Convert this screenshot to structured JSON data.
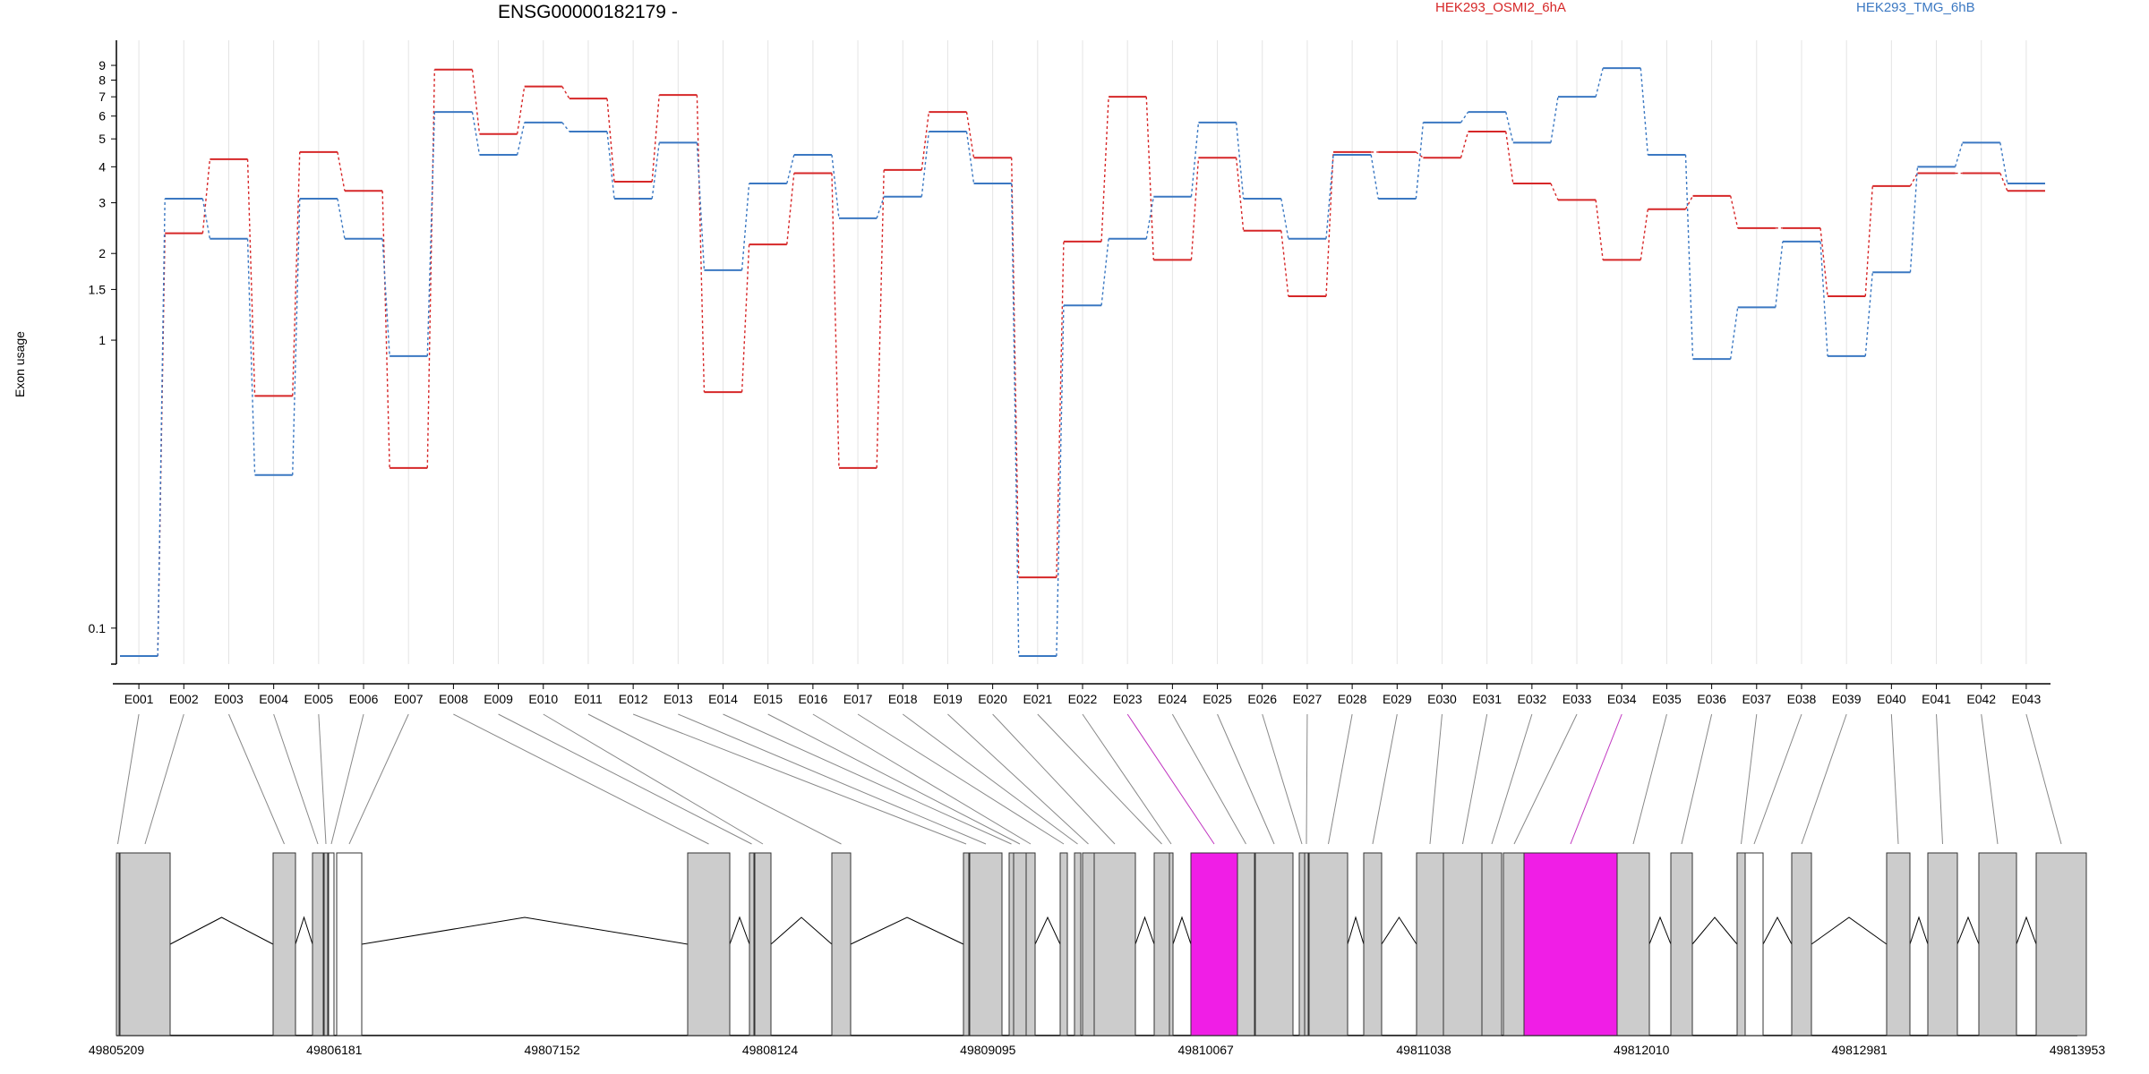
{
  "chart_data": {
    "type": "line",
    "title": "ENSG00000182179 -",
    "ylabel": "Exon usage",
    "yscale": "log",
    "ylim": [
      0.075,
      11
    ],
    "yticks": [
      {
        "v": 0.1,
        "label": "0.1"
      },
      {
        "v": 1,
        "label": "1"
      },
      {
        "v": 1.5,
        "label": "1.5"
      },
      {
        "v": 2,
        "label": "2"
      },
      {
        "v": 3,
        "label": "3"
      },
      {
        "v": 4,
        "label": "4"
      },
      {
        "v": 5,
        "label": "5"
      },
      {
        "v": 6,
        "label": "6"
      },
      {
        "v": 7,
        "label": "7"
      },
      {
        "v": 8,
        "label": "8"
      },
      {
        "v": 9,
        "label": "9"
      }
    ],
    "categories": [
      "E001",
      "E002",
      "E003",
      "E004",
      "E005",
      "E006",
      "E007",
      "E008",
      "E009",
      "E010",
      "E011",
      "E012",
      "E013",
      "E014",
      "E015",
      "E016",
      "E017",
      "E018",
      "E019",
      "E020",
      "E021",
      "E022",
      "E023",
      "E024",
      "E025",
      "E026",
      "E027",
      "E028",
      "E029",
      "E030",
      "E031",
      "E032",
      "E033",
      "E034",
      "E035",
      "E036",
      "E037",
      "E038",
      "E039",
      "E040",
      "E041",
      "E042",
      "E043"
    ],
    "highlighted_exons": [
      "E023",
      "E034"
    ],
    "series": [
      {
        "name": "HEK293_OSMI2_6hA",
        "color": "#d62728",
        "values": [
          0.08,
          2.35,
          4.25,
          0.64,
          4.5,
          3.3,
          0.36,
          8.7,
          5.2,
          7.6,
          6.9,
          3.55,
          7.1,
          0.66,
          2.15,
          3.8,
          0.36,
          3.9,
          6.2,
          4.3,
          0.15,
          2.2,
          7.0,
          1.9,
          4.3,
          2.4,
          1.42,
          4.5,
          4.5,
          4.3,
          5.3,
          3.5,
          3.07,
          1.9,
          2.85,
          3.17,
          2.45,
          2.45,
          1.42,
          3.43,
          3.8,
          3.8,
          3.3
        ]
      },
      {
        "name": "HEK293_TMG_6hB",
        "color": "#3b78c2",
        "values": [
          0.08,
          3.1,
          2.25,
          0.34,
          3.1,
          2.25,
          0.88,
          6.2,
          4.4,
          5.7,
          5.3,
          3.1,
          4.85,
          1.75,
          3.5,
          4.4,
          2.65,
          3.15,
          5.3,
          3.5,
          0.08,
          1.32,
          2.25,
          3.15,
          5.7,
          3.1,
          2.25,
          4.4,
          3.1,
          5.7,
          6.2,
          4.85,
          7.0,
          8.8,
          4.4,
          0.86,
          1.3,
          2.2,
          0.88,
          1.72,
          4.0,
          4.85,
          3.5
        ]
      }
    ],
    "gene_model": {
      "coordinate_labels": [
        "49805209",
        "49806181",
        "49807152",
        "49808124",
        "49809095",
        "49810067",
        "49811038",
        "49812010",
        "49812981",
        "49813953"
      ],
      "exons": [
        {
          "id": "E001",
          "status": "tested"
        },
        {
          "id": "E002",
          "status": "tested"
        },
        {
          "id": "E003",
          "status": "tested"
        },
        {
          "id": "E004",
          "status": "tested"
        },
        {
          "id": "E005",
          "status": "tested"
        },
        {
          "id": "E006",
          "status": "untested"
        },
        {
          "id": "E007",
          "status": "untested"
        },
        {
          "id": "E008",
          "status": "tested"
        },
        {
          "id": "E009",
          "status": "tested"
        },
        {
          "id": "E010",
          "status": "tested"
        },
        {
          "id": "E011",
          "status": "tested"
        },
        {
          "id": "E012",
          "status": "tested"
        },
        {
          "id": "E013",
          "status": "tested"
        },
        {
          "id": "E014",
          "status": "tested"
        },
        {
          "id": "E015",
          "status": "tested"
        },
        {
          "id": "E016",
          "status": "tested"
        },
        {
          "id": "E017",
          "status": "tested"
        },
        {
          "id": "E018",
          "status": "tested"
        },
        {
          "id": "E019",
          "status": "tested"
        },
        {
          "id": "E020",
          "status": "tested"
        },
        {
          "id": "E021",
          "status": "tested"
        },
        {
          "id": "E022",
          "status": "tested"
        },
        {
          "id": "E023",
          "status": "significant"
        },
        {
          "id": "E024",
          "status": "tested"
        },
        {
          "id": "E025",
          "status": "tested"
        },
        {
          "id": "E026",
          "status": "tested"
        },
        {
          "id": "E027",
          "status": "tested"
        },
        {
          "id": "E028",
          "status": "tested"
        },
        {
          "id": "E029",
          "status": "tested"
        },
        {
          "id": "E030",
          "status": "tested"
        },
        {
          "id": "E031",
          "status": "tested"
        },
        {
          "id": "E032",
          "status": "tested"
        },
        {
          "id": "E033",
          "status": "tested"
        },
        {
          "id": "E034",
          "status": "significant"
        },
        {
          "id": "E035",
          "status": "tested"
        },
        {
          "id": "E036",
          "status": "tested"
        },
        {
          "id": "E037",
          "status": "tested"
        },
        {
          "id": "E038",
          "status": "untested"
        },
        {
          "id": "E039",
          "status": "tested"
        },
        {
          "id": "E040",
          "status": "tested"
        },
        {
          "id": "E041",
          "status": "tested"
        },
        {
          "id": "E042",
          "status": "tested"
        },
        {
          "id": "E043",
          "status": "tested"
        }
      ]
    },
    "colors": {
      "tested": "#cccccc",
      "untested": "#ffffff",
      "significant": "#f01ee6",
      "connector": "#888888",
      "grid": "#e4e4e4"
    }
  }
}
